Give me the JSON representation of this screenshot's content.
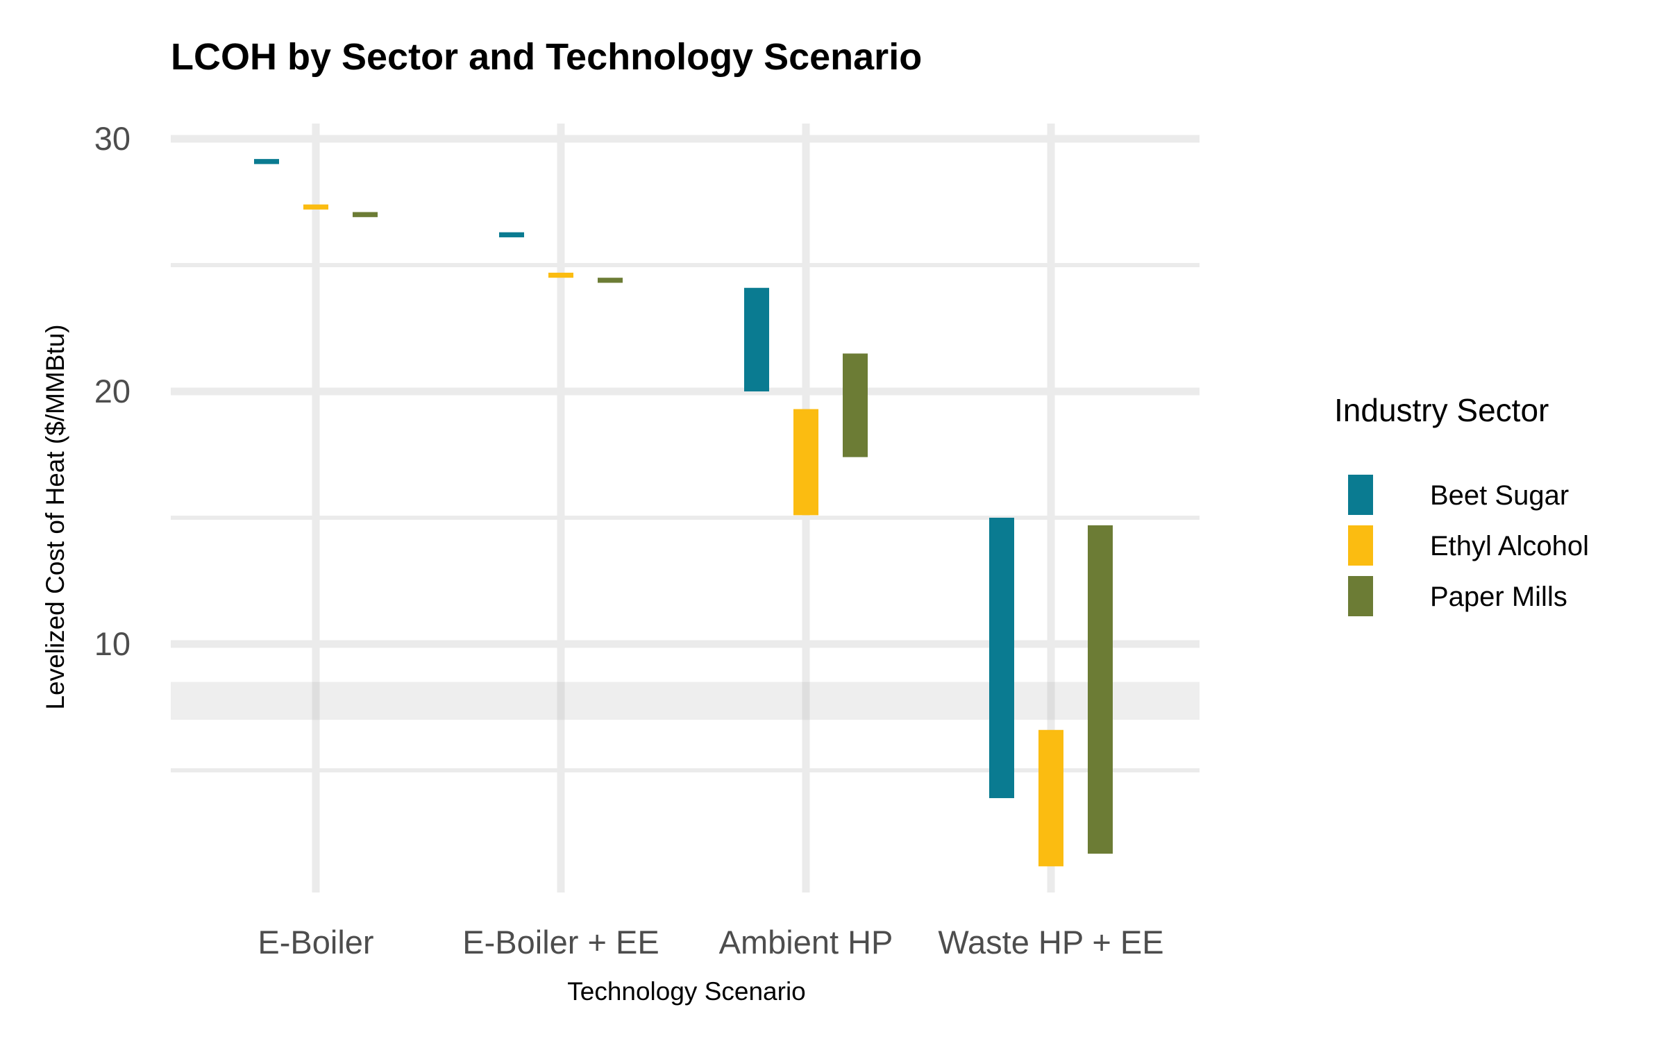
{
  "chart_data": {
    "type": "bar",
    "subtype": "floating range bars",
    "title": "LCOH by Sector and Technology Scenario",
    "xlabel": "Technology Scenario",
    "ylabel": "Levelized Cost of Heat ($/MMBtu)",
    "categories": [
      "E-Boiler",
      "E-Boiler + EE",
      "Ambient HP",
      "Waste HP + EE"
    ],
    "ylim": [
      0,
      30
    ],
    "yticks": [
      10,
      20,
      30
    ],
    "grid": true,
    "shaded_band": [
      7,
      8.5
    ],
    "legend": {
      "title": "Industry Sector",
      "position": "right"
    },
    "series": [
      {
        "name": "Beet Sugar",
        "color": "#0a7b91",
        "ranges": [
          [
            29.0,
            29.2
          ],
          [
            26.1,
            26.3
          ],
          [
            20.0,
            24.1
          ],
          [
            3.9,
            15.0
          ]
        ]
      },
      {
        "name": "Ethyl Alcohol",
        "color": "#fbbc11",
        "ranges": [
          [
            27.2,
            27.4
          ],
          [
            24.5,
            24.7
          ],
          [
            15.1,
            19.3
          ],
          [
            1.2,
            6.6
          ]
        ]
      },
      {
        "name": "Paper Mills",
        "color": "#6c7c35",
        "ranges": [
          [
            26.9,
            27.1
          ],
          [
            24.3,
            24.5
          ],
          [
            17.4,
            21.5
          ],
          [
            1.7,
            14.7
          ]
        ]
      }
    ]
  }
}
